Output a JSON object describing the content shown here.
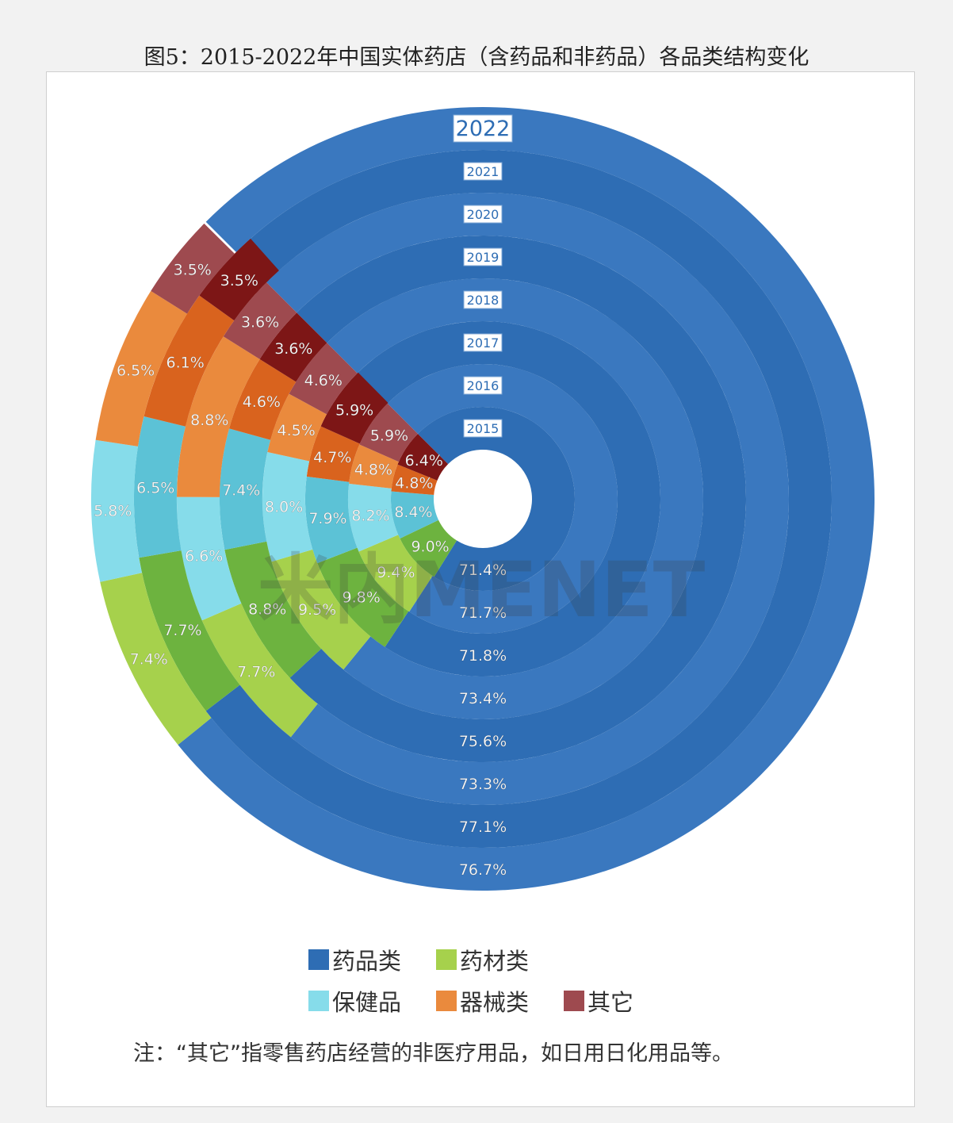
{
  "title": "图5：2015-2022年中国实体药店（含药品和非药品）各品类结构变化",
  "colors": {
    "药品类": "#2e6db4",
    "药品类_alt": "#3a78bf",
    "药材类": "#6db33f",
    "药材类_alt": "#a6d14c",
    "保健品": "#5cc2d6",
    "保健品_alt": "#86dcea",
    "器械类": "#d9631e",
    "器械类_alt": "#ea8a3d",
    "其它": "#7d1616",
    "其它_alt": "#9e4a4f"
  },
  "legend": [
    {
      "label": "药品类",
      "color": "#2e6db4"
    },
    {
      "label": "药材类",
      "color": "#a6d14c"
    },
    {
      "label": "保健品",
      "color": "#86dcea"
    },
    {
      "label": "器械类",
      "color": "#ea8a3d"
    },
    {
      "label": "其它",
      "color": "#9e4a4f"
    }
  ],
  "note": "注：“其它”指零售药店经营的非医疗用品，如日用日化用品等。",
  "watermark": "米内MENET",
  "chart_data": {
    "type": "radial-stacked-bar",
    "years": [
      "2015",
      "2016",
      "2017",
      "2018",
      "2019",
      "2020",
      "2021",
      "2022"
    ],
    "year_label_text": [
      "2015",
      "2016",
      "2017",
      "2018",
      "2019",
      "2020",
      "2021",
      "2022"
    ],
    "series": [
      {
        "name": "药品类",
        "values": [
          71.4,
          71.7,
          71.8,
          73.4,
          75.6,
          73.3,
          77.1,
          76.7
        ],
        "labels": [
          "71.4%",
          "71.7%",
          "71.8%",
          "73.4%",
          "75.6%",
          "73.3%",
          "77.1%",
          "76.7%"
        ]
      },
      {
        "name": "药材类",
        "values": [
          9.0,
          9.4,
          9.8,
          9.5,
          8.8,
          7.7,
          7.7,
          7.4
        ],
        "labels": [
          "9.0%",
          "9.4%",
          "9.8%",
          "9.5%",
          "8.8%",
          "7.7%",
          "7.7%",
          "7.4%"
        ]
      },
      {
        "name": "保健品",
        "values": [
          8.4,
          8.2,
          7.9,
          8.0,
          7.4,
          6.6,
          6.5,
          5.8
        ],
        "labels": [
          "8.4%",
          "8.2%",
          "7.9%",
          "8.0%",
          "7.4%",
          "6.6%",
          "6.5%",
          "5.8%"
        ]
      },
      {
        "name": "器械类",
        "values": [
          4.8,
          4.8,
          4.7,
          4.5,
          4.6,
          8.8,
          6.1,
          6.5
        ],
        "labels": [
          "4.8%",
          "4.8%",
          "4.7%",
          "4.5%",
          "4.6%",
          "8.8%",
          "6.1%",
          "6.5%"
        ]
      },
      {
        "name": "其它",
        "values": [
          6.4,
          5.9,
          5.9,
          4.6,
          3.6,
          3.6,
          3.5,
          3.5
        ],
        "labels": [
          "6.4%",
          "5.9%",
          "5.9%",
          "4.6%",
          "3.6%",
          "3.6%",
          "3.5%",
          "3.5%"
        ]
      }
    ],
    "unit": "%"
  }
}
